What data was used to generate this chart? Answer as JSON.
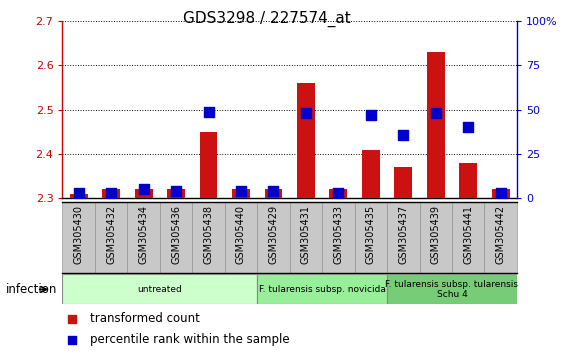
{
  "title": "GDS3298 / 227574_at",
  "samples": [
    "GSM305430",
    "GSM305432",
    "GSM305434",
    "GSM305436",
    "GSM305438",
    "GSM305440",
    "GSM305429",
    "GSM305431",
    "GSM305433",
    "GSM305435",
    "GSM305437",
    "GSM305439",
    "GSM305441",
    "GSM305442"
  ],
  "transformed_count": [
    2.31,
    2.32,
    2.32,
    2.32,
    2.45,
    2.32,
    2.32,
    2.56,
    2.32,
    2.41,
    2.37,
    2.63,
    2.38,
    2.32
  ],
  "percentile_rank": [
    3,
    3,
    5,
    4,
    49,
    4,
    4,
    48,
    3,
    47,
    36,
    48,
    40,
    3
  ],
  "ylim_left": [
    2.3,
    2.7
  ],
  "ylim_right": [
    0,
    100
  ],
  "yticks_left": [
    2.3,
    2.4,
    2.5,
    2.6,
    2.7
  ],
  "yticks_right": [
    0,
    25,
    50,
    75,
    100
  ],
  "ytick_labels_right": [
    "0",
    "25",
    "50",
    "75",
    "100%"
  ],
  "groups": [
    {
      "label": "untreated",
      "start": 0,
      "end": 6,
      "color": "#ccffcc",
      "edge": "#888888"
    },
    {
      "label": "F. tularensis subsp. novicida",
      "start": 6,
      "end": 10,
      "color": "#99ee99",
      "edge": "#888888"
    },
    {
      "label": "F. tularensis subsp. tularensis\nSchu 4",
      "start": 10,
      "end": 14,
      "color": "#77cc77",
      "edge": "#888888"
    }
  ],
  "infection_label": "infection",
  "bar_color": "#cc1111",
  "dot_color": "#0000cc",
  "bar_width": 0.55,
  "dot_size": 45,
  "bg_color": "#ffffff",
  "sample_bg_color": "#c8c8c8",
  "left_axis_color": "#cc0000",
  "right_axis_color": "#0000cc",
  "title_fontsize": 11,
  "tick_fontsize": 8,
  "label_fontsize": 8.5,
  "legend_fontsize": 8.5,
  "sample_fontsize": 7
}
